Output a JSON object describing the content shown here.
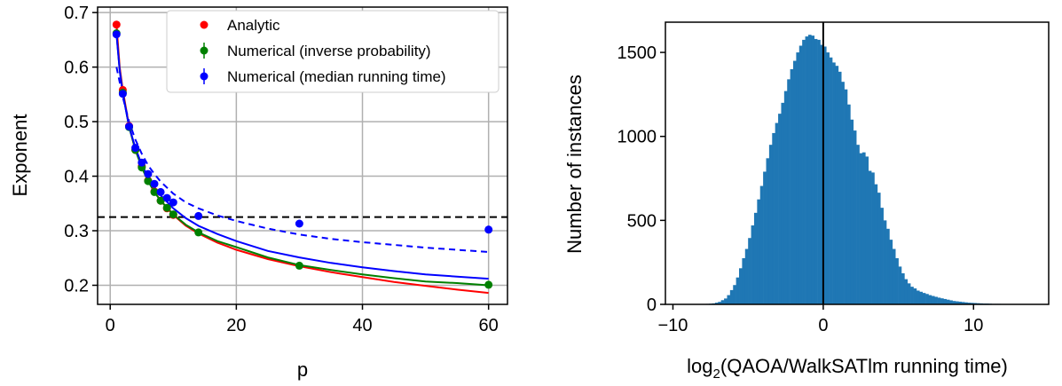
{
  "chart_data": [
    {
      "type": "scatter",
      "title": "",
      "xlabel": "p",
      "ylabel": "Exponent",
      "xlim": [
        -2,
        63
      ],
      "ylim": [
        0.165,
        0.71
      ],
      "xticks": [
        0,
        20,
        40,
        60
      ],
      "xtick_labels": [
        "0",
        "20",
        "40",
        "60"
      ],
      "yticks": [
        0.2,
        0.3,
        0.4,
        0.5,
        0.6,
        0.7
      ],
      "ytick_labels": [
        "0.2",
        "0.3",
        "0.4",
        "0.5",
        "0.6",
        "0.7"
      ],
      "grid": true,
      "legend_position": "top-right",
      "hline": {
        "y": 0.325,
        "style": "dashed",
        "color": "#000000"
      },
      "series": [
        {
          "name": "Analytic",
          "color": "#ff0000",
          "x": [
            1,
            2,
            3,
            4,
            5,
            6,
            7,
            8,
            9,
            10
          ],
          "y": [
            0.678,
            0.558,
            0.492,
            0.448,
            0.418,
            0.392,
            0.372,
            0.355,
            0.341,
            0.329
          ]
        },
        {
          "name": "Numerical (inverse probability)",
          "color": "#008000",
          "x": [
            1,
            2,
            3,
            4,
            5,
            6,
            7,
            8,
            9,
            10,
            14,
            30,
            60
          ],
          "y": [
            0.662,
            0.553,
            0.49,
            0.448,
            0.416,
            0.391,
            0.371,
            0.355,
            0.342,
            0.33,
            0.297,
            0.236,
            0.201
          ]
        },
        {
          "name": "Numerical (median running time)",
          "color": "#0000ff",
          "x": [
            1,
            2,
            3,
            4,
            5,
            6,
            7,
            8,
            9,
            10,
            14,
            30,
            60
          ],
          "y": [
            0.66,
            0.551,
            0.491,
            0.452,
            0.425,
            0.404,
            0.386,
            0.371,
            0.36,
            0.352,
            0.327,
            0.313,
            0.302
          ]
        }
      ],
      "fit_lines": [
        {
          "color": "#ff0000",
          "style": "solid",
          "x": [
            1,
            1.5,
            2,
            3,
            4,
            5,
            6,
            7,
            8,
            10,
            12,
            14,
            17,
            20,
            25,
            30,
            35,
            40,
            45,
            50,
            55,
            60
          ],
          "y": [
            0.678,
            0.6,
            0.558,
            0.492,
            0.448,
            0.418,
            0.392,
            0.372,
            0.355,
            0.329,
            0.309,
            0.295,
            0.278,
            0.265,
            0.248,
            0.235,
            0.224,
            0.215,
            0.206,
            0.199,
            0.192,
            0.186
          ]
        },
        {
          "color": "#008000",
          "style": "solid",
          "x": [
            1,
            1.5,
            2,
            3,
            4,
            5,
            6,
            7,
            8,
            10,
            12,
            14,
            17,
            20,
            25,
            30,
            35,
            40,
            45,
            50,
            55,
            60
          ],
          "y": [
            0.662,
            0.594,
            0.553,
            0.49,
            0.448,
            0.416,
            0.391,
            0.371,
            0.355,
            0.33,
            0.311,
            0.297,
            0.281,
            0.27,
            0.251,
            0.237,
            0.228,
            0.22,
            0.213,
            0.207,
            0.204,
            0.2
          ]
        },
        {
          "color": "#0000ff",
          "style": "solid",
          "x": [
            1,
            1.5,
            2,
            3,
            4,
            5,
            6,
            7,
            8,
            10,
            12,
            14,
            17,
            20,
            25,
            30,
            35,
            40,
            45,
            50,
            55,
            60
          ],
          "y": [
            0.66,
            0.594,
            0.551,
            0.491,
            0.452,
            0.421,
            0.398,
            0.38,
            0.365,
            0.341,
            0.323,
            0.309,
            0.294,
            0.281,
            0.263,
            0.251,
            0.241,
            0.233,
            0.226,
            0.22,
            0.216,
            0.212
          ]
        },
        {
          "color": "#0000ff",
          "style": "dashed",
          "x": [
            1,
            2,
            3,
            4,
            5,
            6,
            7,
            8,
            10,
            12,
            14,
            17,
            20,
            25,
            30,
            35,
            40,
            45,
            50,
            55,
            60
          ],
          "y": [
            0.6,
            0.545,
            0.5,
            0.467,
            0.441,
            0.42,
            0.404,
            0.39,
            0.368,
            0.352,
            0.341,
            0.328,
            0.318,
            0.304,
            0.293,
            0.285,
            0.279,
            0.274,
            0.269,
            0.265,
            0.261
          ]
        }
      ]
    },
    {
      "type": "bar",
      "title": "",
      "xlabel_main": "log",
      "xlabel_sub": "2",
      "xlabel_rest": "(QAOA/WalkSATlm running time)",
      "ylabel": "Number of instances",
      "xlim": [
        -10.5,
        15
      ],
      "ylim": [
        0,
        1680
      ],
      "xticks": [
        -10,
        0,
        10
      ],
      "xtick_labels": [
        "−10",
        "0",
        "10"
      ],
      "yticks": [
        0,
        500,
        1000,
        1500
      ],
      "ytick_labels": [
        "0",
        "500",
        "1000",
        "1500"
      ],
      "grid": false,
      "vline": {
        "x": 0,
        "color": "#000000"
      },
      "color": "#1f77b4",
      "bin_start": -9,
      "bin_width": 0.2,
      "counts": [
        0,
        0,
        0,
        1,
        1,
        2,
        3,
        4,
        6,
        10,
        15,
        25,
        35,
        55,
        85,
        115,
        160,
        215,
        275,
        330,
        395,
        470,
        545,
        625,
        705,
        790,
        870,
        950,
        1020,
        1080,
        1135,
        1200,
        1270,
        1340,
        1400,
        1450,
        1500,
        1540,
        1575,
        1595,
        1605,
        1600,
        1580,
        1575,
        1545,
        1535,
        1500,
        1470,
        1440,
        1420,
        1385,
        1325,
        1280,
        1190,
        1100,
        1035,
        950,
        900,
        905,
        880,
        795,
        785,
        715,
        665,
        575,
        500,
        450,
        385,
        330,
        275,
        225,
        185,
        150,
        125,
        105,
        95,
        82,
        75,
        68,
        62,
        55,
        50,
        45,
        40,
        36,
        32,
        28,
        24,
        20,
        18,
        16,
        14,
        12,
        10,
        9,
        8,
        7,
        6,
        5,
        5,
        4,
        3,
        3,
        3,
        2,
        2,
        2,
        2,
        1,
        1,
        1,
        1,
        1,
        1,
        0,
        1,
        0,
        1,
        0,
        0,
        0,
        0,
        0,
        0,
        0,
        0,
        0,
        0,
        0,
        0,
        0,
        0,
        0,
        0,
        0,
        0,
        0,
        0,
        0
      ]
    }
  ]
}
